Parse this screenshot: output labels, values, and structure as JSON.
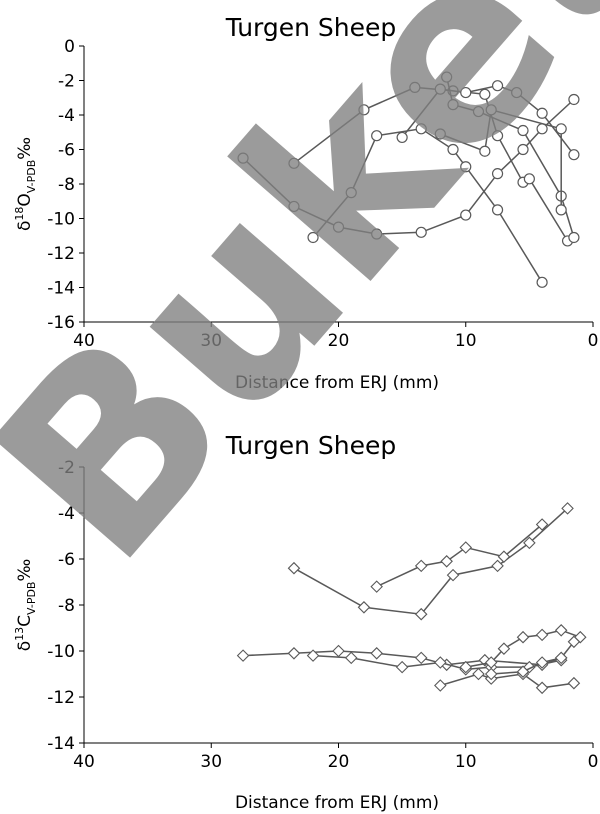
{
  "watermark": "Buketov",
  "colors": {
    "series": "#595959",
    "axis": "#000000",
    "watermark": "#808080"
  },
  "chart_data": [
    {
      "type": "line",
      "marker": "circle",
      "title": "Turgen Sheep",
      "xlabel": "Distance from ERJ (mm)",
      "ylabel": {
        "pre": "δ",
        "sup": "18",
        "main": "O",
        "sub": "V-PDB",
        "post": "‰"
      },
      "xlim": [
        40,
        0
      ],
      "ylim": [
        -16,
        0
      ],
      "xticks": [
        40,
        30,
        20,
        10,
        0
      ],
      "yticks": [
        0,
        -2,
        -4,
        -6,
        -8,
        -10,
        -12,
        -14,
        -16
      ],
      "grid": false,
      "series": [
        {
          "points": [
            [
              27.5,
              -6.5
            ],
            [
              23.5,
              -9.3
            ],
            [
              20,
              -10.5
            ],
            [
              17,
              -10.9
            ],
            [
              13.5,
              -10.8
            ],
            [
              10,
              -9.8
            ],
            [
              7.5,
              -7.4
            ],
            [
              5.5,
              -6.0
            ],
            [
              4,
              -4.8
            ],
            [
              1.5,
              -3.1
            ]
          ]
        },
        {
          "points": [
            [
              23.5,
              -6.8
            ],
            [
              18,
              -3.7
            ],
            [
              14,
              -2.4
            ],
            [
              11,
              -2.6
            ],
            [
              8.5,
              -2.8
            ],
            [
              7.5,
              -5.2
            ],
            [
              5.5,
              -7.9
            ],
            [
              5,
              -7.7
            ],
            [
              2,
              -11.3
            ]
          ]
        },
        {
          "points": [
            [
              22,
              -11.1
            ],
            [
              19,
              -8.5
            ],
            [
              17,
              -5.2
            ],
            [
              13.5,
              -4.8
            ],
            [
              11,
              -6.0
            ],
            [
              10,
              -7.0
            ],
            [
              7.5,
              -9.5
            ],
            [
              4,
              -13.7
            ]
          ]
        },
        {
          "points": [
            [
              15,
              -5.3
            ],
            [
              12,
              -2.5
            ],
            [
              10,
              -2.7
            ],
            [
              7.5,
              -2.3
            ],
            [
              6,
              -2.7
            ],
            [
              4,
              -3.9
            ],
            [
              1.5,
              -6.3
            ]
          ]
        },
        {
          "points": [
            [
              11.5,
              -1.8
            ],
            [
              11,
              -3.4
            ],
            [
              9,
              -3.8
            ],
            [
              5.5,
              -4.9
            ],
            [
              2.5,
              -8.7
            ],
            [
              1.5,
              -11.1
            ]
          ]
        },
        {
          "points": [
            [
              12,
              -5.1
            ],
            [
              8.5,
              -6.1
            ],
            [
              8,
              -3.7
            ],
            [
              2.5,
              -4.8
            ],
            [
              2.5,
              -9.5
            ]
          ]
        }
      ]
    },
    {
      "type": "line",
      "marker": "diamond",
      "title": "Turgen Sheep",
      "xlabel": "Distance from ERJ (mm)",
      "ylabel": {
        "pre": "δ",
        "sup": "13",
        "main": "C",
        "sub": "V-PDB",
        "post": "‰"
      },
      "xlim": [
        40,
        0
      ],
      "ylim": [
        -14,
        -2
      ],
      "xticks": [
        40,
        30,
        20,
        10,
        0
      ],
      "yticks": [
        -2,
        -4,
        -6,
        -8,
        -10,
        -12,
        -14
      ],
      "grid": false,
      "series": [
        {
          "points": [
            [
              23.5,
              -6.4
            ],
            [
              18,
              -8.1
            ],
            [
              13.5,
              -8.4
            ],
            [
              11,
              -6.7
            ],
            [
              7.5,
              -6.3
            ],
            [
              5,
              -5.3
            ],
            [
              2,
              -3.8
            ]
          ]
        },
        {
          "points": [
            [
              17,
              -7.2
            ],
            [
              13.5,
              -6.3
            ],
            [
              11.5,
              -6.1
            ],
            [
              10,
              -5.5
            ],
            [
              7,
              -5.9
            ],
            [
              4,
              -4.5
            ]
          ]
        },
        {
          "points": [
            [
              27.5,
              -10.2
            ],
            [
              23.5,
              -10.1
            ],
            [
              20,
              -10.0
            ],
            [
              17,
              -10.1
            ],
            [
              13.5,
              -10.3
            ],
            [
              11.5,
              -10.6
            ],
            [
              8.5,
              -10.4
            ],
            [
              4,
              -10.6
            ],
            [
              2.5,
              -10.3
            ]
          ]
        },
        {
          "points": [
            [
              22,
              -10.2
            ],
            [
              19,
              -10.3
            ],
            [
              15,
              -10.7
            ],
            [
              12,
              -10.5
            ],
            [
              10,
              -10.8
            ],
            [
              8,
              -10.7
            ],
            [
              5,
              -10.7
            ],
            [
              2.5,
              -10.4
            ]
          ]
        },
        {
          "points": [
            [
              12,
              -11.5
            ],
            [
              9,
              -11.0
            ],
            [
              8,
              -11.2
            ],
            [
              5.5,
              -11.0
            ],
            [
              4,
              -11.6
            ],
            [
              1.5,
              -11.4
            ]
          ]
        },
        {
          "points": [
            [
              10,
              -10.7
            ],
            [
              8,
              -10.5
            ],
            [
              7,
              -9.9
            ],
            [
              5.5,
              -9.4
            ],
            [
              4,
              -9.3
            ],
            [
              2.5,
              -9.1
            ],
            [
              1,
              -9.4
            ]
          ]
        },
        {
          "points": [
            [
              8,
              -11.0
            ],
            [
              5.5,
              -10.9
            ],
            [
              4,
              -10.5
            ],
            [
              2.5,
              -10.3
            ],
            [
              1.5,
              -9.6
            ]
          ]
        }
      ]
    }
  ]
}
